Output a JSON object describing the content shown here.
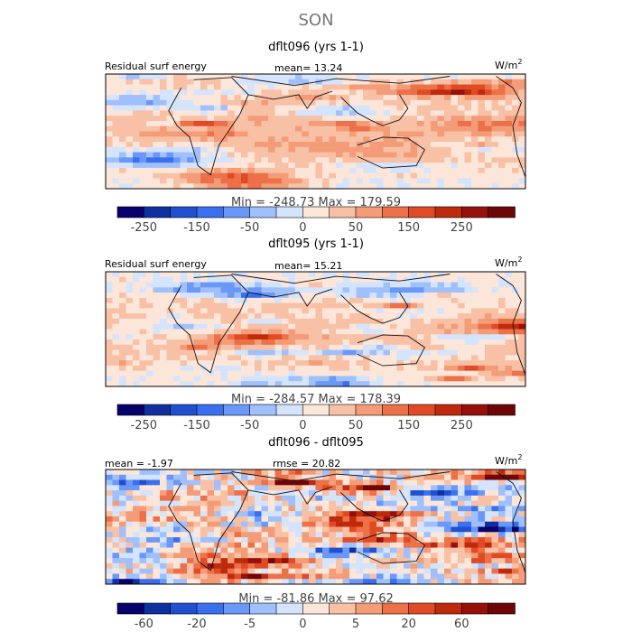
{
  "title": "SON",
  "panels": [
    {
      "case_title": "dflt096 (yrs 1-1)",
      "left_label": "Residual surf energy",
      "stat": "mean=  13.24",
      "units": "W/m",
      "units_sup": "2",
      "minmax": "Min = -248.73 Max = 179.59",
      "colorbar_ticks": [
        "-250",
        "-150",
        "-50",
        "0",
        "50",
        "150",
        "250"
      ]
    },
    {
      "case_title": "dflt095 (yrs 1-1)",
      "left_label": "Residual surf energy",
      "stat": "mean=  15.21",
      "units": "W/m",
      "units_sup": "2",
      "minmax": "Min = -284.57 Max = 178.39",
      "colorbar_ticks": [
        "-250",
        "-150",
        "-50",
        "0",
        "50",
        "150",
        "250"
      ]
    },
    {
      "case_title": "dflt096 - dflt095",
      "left_label": "mean =  -1.97",
      "stat": "rmse =  20.82",
      "units": "W/m",
      "units_sup": "2",
      "minmax": "Min = -81.86 Max =  97.62",
      "colorbar_ticks": [
        "-60",
        "-20",
        "-5",
        "0",
        "5",
        "20",
        "60"
      ]
    }
  ],
  "colors": {
    "abs_scale": [
      "#08006b",
      "#1030a0",
      "#2050d0",
      "#3a70f0",
      "#6a98f8",
      "#a0c0fb",
      "#d4e4fc",
      "#fce6da",
      "#f8c0a4",
      "#f49c78",
      "#ec7048",
      "#e04a24",
      "#c02a0c",
      "#98100a",
      "#6e0606"
    ],
    "diff_scale": [
      "#08006b",
      "#1030a0",
      "#2050d0",
      "#3a70f0",
      "#6a98f8",
      "#a0c0fb",
      "#d4e4fc",
      "#fce6da",
      "#f8c0a4",
      "#f49c78",
      "#ec7048",
      "#e04a24",
      "#c02a0c",
      "#98100a",
      "#6e0606"
    ]
  },
  "chart_data": [
    {
      "type": "heatmap",
      "title": "dflt096 (yrs 1-1)",
      "variable": "Residual surf energy",
      "units": "W/m2",
      "mean": 13.24,
      "min": -248.73,
      "max": 179.59,
      "colorbar_levels": [
        -250,
        -150,
        -50,
        0,
        50,
        150,
        250
      ]
    },
    {
      "type": "heatmap",
      "title": "dflt095 (yrs 1-1)",
      "variable": "Residual surf energy",
      "units": "W/m2",
      "mean": 15.21,
      "min": -284.57,
      "max": 178.39,
      "colorbar_levels": [
        -250,
        -150,
        -50,
        0,
        50,
        150,
        250
      ]
    },
    {
      "type": "heatmap",
      "title": "dflt096 - dflt095",
      "units": "W/m2",
      "mean": -1.97,
      "rmse": 20.82,
      "min": -81.86,
      "max": 97.62,
      "colorbar_levels": [
        -60,
        -20,
        -5,
        0,
        5,
        20,
        60
      ]
    }
  ]
}
